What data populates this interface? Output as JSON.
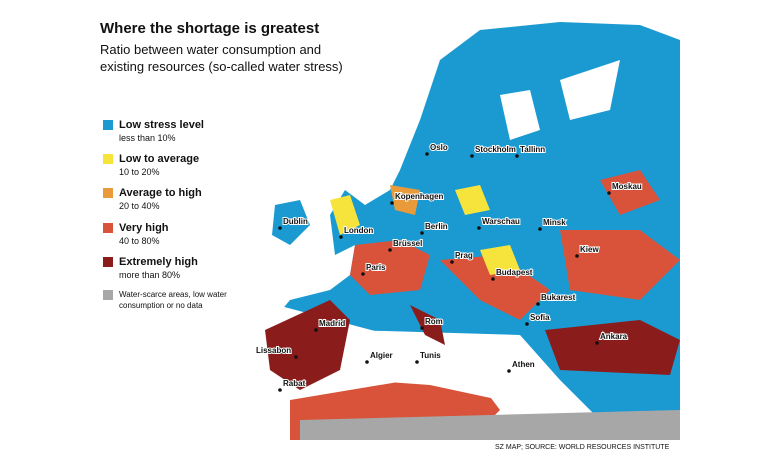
{
  "header": {
    "title": "Where the shortage is greatest",
    "subtitle_lines": [
      "Ratio between water consumption and",
      "existing resources (so-called water stress)"
    ]
  },
  "legend": [
    {
      "label": "Low stress level",
      "sublabel": "less than 10%",
      "color": "#1b9ad2"
    },
    {
      "label": "Low to average",
      "sublabel": "10 to 20%",
      "color": "#f6e43c"
    },
    {
      "label": "Average to high",
      "sublabel": "20 to 40%",
      "color": "#e99b3b"
    },
    {
      "label": "Very high",
      "sublabel": "40 to 80%",
      "color": "#d8533a"
    },
    {
      "label": "Extremely high",
      "sublabel": "more than 80%",
      "color": "#8a1c1c"
    },
    {
      "note": "Water-scarce areas, low water consumption or no data",
      "color": "#a7a7a7"
    }
  ],
  "cities": [
    "Oslo",
    "Stockholm",
    "Tallinn",
    "Moskau",
    "Kopenhagen",
    "Dublin",
    "London",
    "Brüssel",
    "Berlin",
    "Warschau",
    "Minsk",
    "Kiew",
    "Paris",
    "Prag",
    "Budapest",
    "Bukarest",
    "Sofia",
    "Madrid",
    "Rom",
    "Ankara",
    "Lissabon",
    "Algier",
    "Tunis",
    "Athen",
    "Rabat"
  ],
  "source": "SZ MAP; SOURCE: WORLD RESOURCES INSTITUTE"
}
